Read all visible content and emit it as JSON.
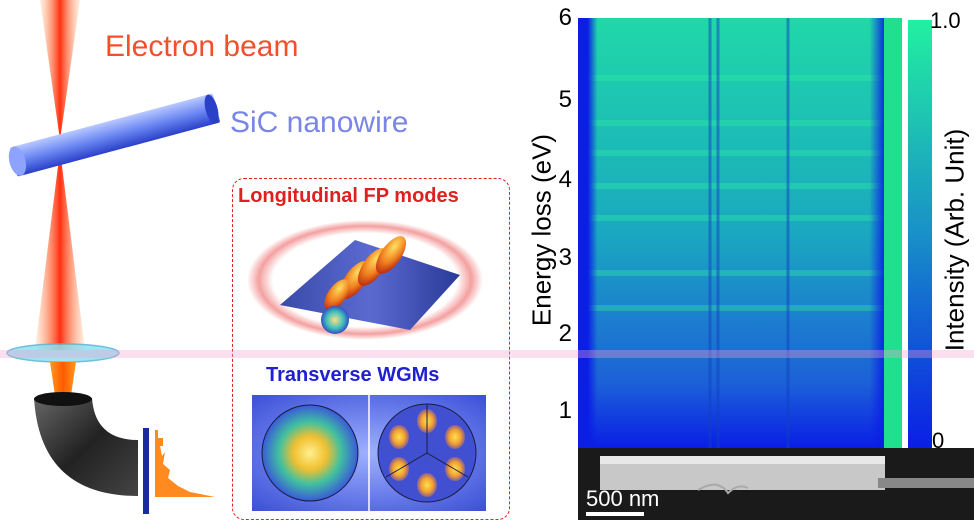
{
  "labels": {
    "beam": "Electron beam",
    "wire": "SiC nanowire",
    "fp_modes": "Longitudinal FP modes",
    "wgm_modes": "Transverse WGMs"
  },
  "map": {
    "y_axis_label": "Energy loss (eV)",
    "y_ticks": [
      "6",
      "5",
      "4",
      "3",
      "2",
      "1"
    ],
    "colorbar_label": "Intensity (Arb. Unit)",
    "colorbar_max": "1.0",
    "colorbar_min": "0",
    "scale_bar": "500 nm"
  },
  "colors": {
    "beam": "#f0502a",
    "wire": "#7a86e6",
    "fp_title": "#e02020",
    "wgm_title": "#2020d0",
    "map_low": "#0a1ee6",
    "map_high": "#22f0a0"
  }
}
